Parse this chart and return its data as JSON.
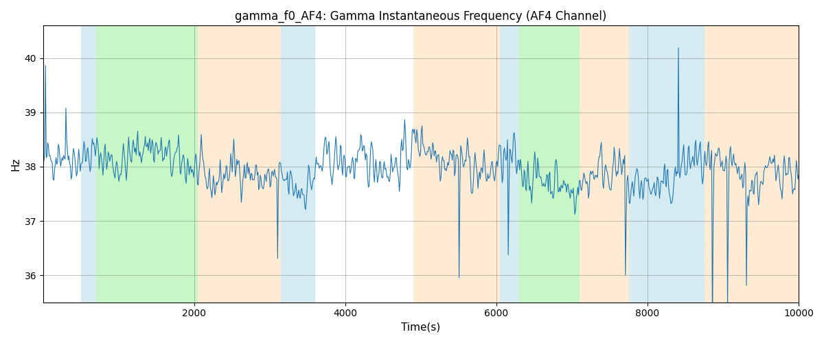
{
  "title": "gamma_f0_AF4: Gamma Instantaneous Frequency (AF4 Channel)",
  "xlabel": "Time(s)",
  "ylabel": "Hz",
  "xlim": [
    0,
    10000
  ],
  "ylim": [
    35.5,
    40.6
  ],
  "yticks": [
    36,
    37,
    38,
    39,
    40
  ],
  "xticks": [
    2000,
    4000,
    6000,
    8000,
    10000
  ],
  "line_color": "#1f77b4",
  "line_width": 0.8,
  "bg_regions": [
    {
      "start": 0,
      "end": 500,
      "color": "#ffffff",
      "alpha": 0.0
    },
    {
      "start": 500,
      "end": 700,
      "color": "#add8e6",
      "alpha": 0.5
    },
    {
      "start": 700,
      "end": 2050,
      "color": "#90ee90",
      "alpha": 0.5
    },
    {
      "start": 2050,
      "end": 3150,
      "color": "#ffd8a8",
      "alpha": 0.5
    },
    {
      "start": 3150,
      "end": 3600,
      "color": "#add8e6",
      "alpha": 0.5
    },
    {
      "start": 3600,
      "end": 4900,
      "color": "#ffffff",
      "alpha": 0.0
    },
    {
      "start": 4900,
      "end": 6050,
      "color": "#ffd8a8",
      "alpha": 0.5
    },
    {
      "start": 6050,
      "end": 6300,
      "color": "#add8e6",
      "alpha": 0.5
    },
    {
      "start": 6300,
      "end": 7100,
      "color": "#90ee90",
      "alpha": 0.5
    },
    {
      "start": 7100,
      "end": 7750,
      "color": "#ffd8a8",
      "alpha": 0.5
    },
    {
      "start": 7750,
      "end": 8750,
      "color": "#add8e6",
      "alpha": 0.5
    },
    {
      "start": 8750,
      "end": 10000,
      "color": "#ffd8a8",
      "alpha": 0.5
    }
  ],
  "seed": 42,
  "n_points": 1000,
  "base_freq": 38.0,
  "noise_std": 0.35
}
